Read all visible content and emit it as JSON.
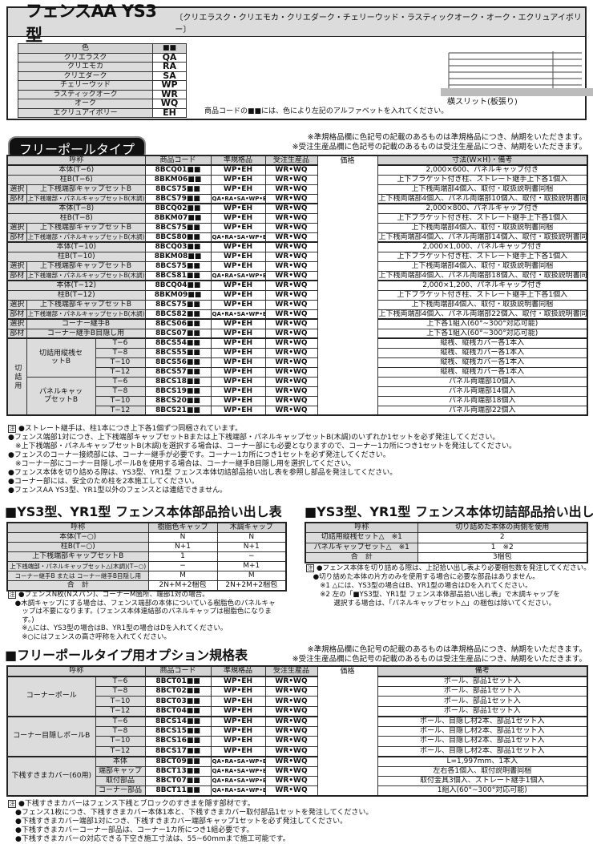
{
  "header": {
    "title": "フェンスAA YS3型",
    "colors_subtitle": "〔クリエラスク・クリエモカ・クリエダーク・チェリーウッド・ラスティックオーク・オーク・エクリュアイボリー〕"
  },
  "color_table": {
    "headers": [
      "色",
      "■■"
    ],
    "rows": [
      [
        "クリエラスク",
        "QA"
      ],
      [
        "クリエモカ",
        "RA"
      ],
      [
        "クリエダーク",
        "SA"
      ],
      [
        "チェリーウッド",
        "WP"
      ],
      [
        "ラスティックオーク",
        "WR"
      ],
      [
        "オーク",
        "WQ"
      ],
      [
        "エクリュアイボリー",
        "EH"
      ]
    ],
    "note": "商品コードの■■には、色により左記のアルファベットを入れてください。"
  },
  "figure": {
    "caption": "横スリット(板張り)"
  },
  "free_pole": {
    "badge": "フリーポールタイプ",
    "star_notes": [
      "※準規格品欄に色記号の記載のあるものは準規格品につき、納期をいただきます。",
      "※受注生産品欄に色記号の記載のあるものは受注生産品につき、納期をいただきます。"
    ],
    "headers": [
      "呼称",
      "商品コード",
      "準規格品",
      "受注生産品",
      "価格",
      "寸法(W×H)・備考"
    ],
    "rows": [
      {
        "name": "本体(T−6)",
        "code": "8BCQ01■■",
        "std": "WP•EH",
        "ord": "WR•WQ",
        "note": "2,000×600、パネルキャップ付き"
      },
      {
        "name": "柱B(T−6)",
        "code": "8BKM06■■",
        "std": "WP•EH",
        "ord": "WR•WQ",
        "note": "上下ブラケット付き柱、ストレート継手上下各1個入"
      },
      {
        "side": "選択",
        "name": "上下桟端部キャップセットB",
        "code": "8BCS75■■",
        "std": "WP•EH",
        "ord": "WR•WQ",
        "note": "上下桟両端部4個入、取付・取扱説明書同梱"
      },
      {
        "side": "部材",
        "name": "上下桟端部・パネルキャップセットB(木調)",
        "code": "8BCS79■■",
        "std": "QA•RA•SA•WP•EH",
        "ord": "WR•WQ",
        "note": "上下桟両端部4個入、パネル両端部10個入、取付・取扱説明書同梱"
      },
      {
        "name": "本体(T−8)",
        "code": "8BCQ02■■",
        "std": "WP•EH",
        "ord": "WR•WQ",
        "note": "2,000×800、パネルキャップ付き"
      },
      {
        "name": "柱B(T−8)",
        "code": "8BKM07■■",
        "std": "WP•EH",
        "ord": "WR•WQ",
        "note": "上下ブラケット付き柱、ストレート継手上下各1個入"
      },
      {
        "side": "選択",
        "name": "上下桟端部キャップセットB",
        "code": "8BCS75■■",
        "std": "WP•EH",
        "ord": "WR•WQ",
        "note": "上下桟両端部4個入、取付・取扱説明書同梱"
      },
      {
        "side": "部材",
        "name": "上下桟端部・パネルキャップセットB(木調)",
        "code": "8BCS80■■",
        "std": "QA•RA•SA•WP•EH",
        "ord": "WR•WQ",
        "note": "上下桟両端部4個入、パネル両端部14個入、取付・取扱説明書同梱"
      },
      {
        "name": "本体(T−10)",
        "code": "8BCQ03■■",
        "std": "WP•EH",
        "ord": "WR•WQ",
        "note": "2,000×1,000、パネルキャップ付き"
      },
      {
        "name": "柱B(T−10)",
        "code": "8BKM08■■",
        "std": "WP•EH",
        "ord": "WR•WQ",
        "note": "上下ブラケット付き柱、ストレート継手上下各1個入"
      },
      {
        "side": "選択",
        "name": "上下桟端部キャップセットB",
        "code": "8BCS75■■",
        "std": "WP•EH",
        "ord": "WR•WQ",
        "note": "上下桟両端部4個入、取付・取扱説明書同梱"
      },
      {
        "side": "部材",
        "name": "上下桟端部・パネルキャップセットB(木調)",
        "code": "8BCS81■■",
        "std": "QA•RA•SA•WP•EH",
        "ord": "WR•WQ",
        "note": "上下桟両端部4個入、パネル両端部18個入、取付・取扱説明書同梱"
      },
      {
        "name": "本体(T−12)",
        "code": "8BCQ04■■",
        "std": "WP•EH",
        "ord": "WR•WQ",
        "note": "2,000×1,200、パネルキャップ付き"
      },
      {
        "name": "柱B(T−12)",
        "code": "8BKM09■■",
        "std": "WP•EH",
        "ord": "WR•WQ",
        "note": "上下ブラケット付き柱、ストレート継手上下各1個入"
      },
      {
        "side": "選択",
        "name": "上下桟端部キャップセットB",
        "code": "8BCS75■■",
        "std": "WP•EH",
        "ord": "WR•WQ",
        "note": "上下桟両端部4個入、取付・取扱説明書同梱"
      },
      {
        "side": "部材",
        "name": "上下桟端部・パネルキャップセットB(木調)",
        "code": "8BCS82■■",
        "std": "QA•RA•SA•WP•EH",
        "ord": "WR•WQ",
        "note": "上下桟両端部4個入、パネル両端部22個入、取付・取扱説明書同梱"
      },
      {
        "side": "選択",
        "name": "コーナー継手B",
        "code": "8BCS06■■",
        "std": "WP•EH",
        "ord": "WR•WQ",
        "note": "上下各1組入(60°~300°対応可能)"
      },
      {
        "side": "部材",
        "name": "コーナー継手B目隠し用",
        "code": "8BCS07■■",
        "std": "WP•EH",
        "ord": "WR•WQ",
        "note": "上下各1組入(60°~300°対応可能)"
      },
      {
        "group": "切詰用",
        "sub": "切詰用縦桟セットB",
        "name": "T−6",
        "code": "8BCS54■■",
        "std": "WP•EH",
        "ord": "WR•WQ",
        "note": "縦桟、縦桟カバー各1本入"
      },
      {
        "group": "切詰用",
        "sub": "切詰用縦桟セットB",
        "name": "T−8",
        "code": "8BCS55■■",
        "std": "WP•EH",
        "ord": "WR•WQ",
        "note": "縦桟、縦桟カバー各1本入"
      },
      {
        "group": "切詰用",
        "sub": "切詰用縦桟セットB",
        "name": "T−10",
        "code": "8BCS56■■",
        "std": "WP•EH",
        "ord": "WR•WQ",
        "note": "縦桟、縦桟カバー各1本入"
      },
      {
        "group": "切詰用",
        "sub": "切詰用縦桟セットB",
        "name": "T−12",
        "code": "8BCS57■■",
        "std": "WP•EH",
        "ord": "WR•WQ",
        "note": "縦桟、縦桟カバー各1本入"
      },
      {
        "group": "切詰用",
        "sub": "パネルキャップセットB",
        "name": "T−6",
        "code": "8BCS18■■",
        "std": "WP•EH",
        "ord": "WR•WQ",
        "note": "パネル両端部10個入"
      },
      {
        "group": "切詰用",
        "sub": "パネルキャップセットB",
        "name": "T−8",
        "code": "8BCS19■■",
        "std": "WP•EH",
        "ord": "WR•WQ",
        "note": "パネル両端部14個入"
      },
      {
        "group": "切詰用",
        "sub": "パネルキャップセットB",
        "name": "T−10",
        "code": "8BCS20■■",
        "std": "WP•EH",
        "ord": "WR•WQ",
        "note": "パネル両端部18個入"
      },
      {
        "group": "切詰用",
        "sub": "パネルキャップセットB",
        "name": "T−12",
        "code": "8BCS21■■",
        "std": "WP•EH",
        "ord": "WR•WQ",
        "note": "パネル両端部22個入"
      }
    ],
    "notes_mark": "注",
    "notes": [
      "●ストレート継手は、柱1本につき上下各1個ずつ同梱されています。",
      "●フェンス端部1対につき、上下桟端部キャップセットBまたは上下桟端部・パネルキャップセットB(木調)のいずれか1セットを必ず発注してください。",
      "　※上下桟端部・パネルキャップセットB(木調)を選択する場合は、コーナー部にも必要となりますので、コーナー1カ所につき1セットを発注してください。",
      "●フェンスのコーナー接続部には、コーナー継手が必要です。コーナー1カ所につき1セットを必ず発注してください。",
      "　※コーナー部にコーナー目隠しポールBを使用する場合は、コーナー継手B目隠し用を選択してください。",
      "●フェンス本体を切り詰める際は、YS3型、YR1型 フェンス本体切詰部品拾い出し表を参照し部品を発注してください。",
      "●コーナー部には、安全のため柱を2本施工してください。",
      "●フェンスAA YS3型、YR1型以外のフェンスとは連結できません。"
    ]
  },
  "parts_table": {
    "title": "■YS3型、YR1型 フェンス本体部品拾い出し表",
    "headers": [
      "呼称",
      "樹脂色キャップ",
      "木調キャップ"
    ],
    "rows": [
      [
        "本体(T−○)",
        "N",
        "N"
      ],
      [
        "柱B(T−○)",
        "N+1",
        "N+1"
      ],
      [
        "上下桟端部キャップセットB",
        "1",
        "−"
      ],
      [
        "上下桟端部・パネルキャップセット△(木調)(T−○)",
        "−",
        "M+1"
      ],
      [
        "コーナー継手B または コーナー継手B目隠し用",
        "M",
        "M"
      ],
      [
        "合　計",
        "2N+M+2梱包",
        "2N+2M+2梱包"
      ]
    ],
    "notes_mark": "注",
    "notes": [
      "●フェンスN枚(Nスパン)、コーナーM箇所、端部1対の場合。",
      "　●木調キャップにする場合は、フェンス端部の本体についている樹脂色のパネルキャ",
      "　　ップは不要になります。(フェンス本体連結部のパネルキャップは樹脂色になりま",
      "　　す。)",
      "　　※△には、YS3型の場合はB、YR1型の場合はDを入れてください。",
      "　　※○にはフェンスの高さ呼称を入れてください。"
    ]
  },
  "cut_table": {
    "title": "■YS3型、YR1型 フェンス本体切詰部品拾い出し表",
    "headers": [
      "呼称",
      "切り詰めた本体の両側を使用"
    ],
    "rows": [
      [
        "切詰用縦桟セット△　※1",
        "2"
      ],
      [
        "パネルキャップセット△　※1",
        "1　※2"
      ],
      [
        "合　計",
        "3梱包"
      ]
    ],
    "notes_mark": "注",
    "notes": [
      "●フェンス本体を切り詰める際は、上記拾い出し表より必要梱包数を発注してください。",
      "　●切り詰めた本体の片方のみを使用する場合に必要な部品はありません。",
      "　　※1 △には、YS3型の場合はB、YR1型の場合はDを入れてください。",
      "　　※2 左の「■YS3型、YR1型 フェンス本体部品拾い出し表」で木調キャップを",
      "　　　　選択する場合は、「パネルキャップセット△」の梱包は除いてください。"
    ]
  },
  "option_table": {
    "title": "■フリーポールタイプ用オプション規格表",
    "star_notes": [
      "※準規格品欄に色記号の記載のあるものは準規格品につき、納期をいただきます。",
      "※受注生産品欄に色記号の記載のあるものは受注生産品につき、納期をいただきます。"
    ],
    "headers": [
      "呼称",
      "商品コード",
      "準規格品",
      "受注生産品",
      "価格",
      "備考"
    ],
    "rows": [
      {
        "group": "コーナーポール",
        "name": "T−6",
        "code": "8BCT01■■",
        "std": "WP•EH",
        "ord": "WR•WQ",
        "note": "ポール、部品1セット入"
      },
      {
        "group": "コーナーポール",
        "name": "T−8",
        "code": "8BCT02■■",
        "std": "WP•EH",
        "ord": "WR•WQ",
        "note": "ポール、部品1セット入"
      },
      {
        "group": "コーナーポール",
        "name": "T−10",
        "code": "8BCT03■■",
        "std": "WP•EH",
        "ord": "WR•WQ",
        "note": "ポール、部品1セット入"
      },
      {
        "group": "コーナーポール",
        "name": "T−12",
        "code": "8BCT04■■",
        "std": "WP•EH",
        "ord": "WR•WQ",
        "note": "ポール、部品1セット入"
      },
      {
        "group": "コーナー目隠しポールB",
        "name": "T−6",
        "code": "8BCS14■■",
        "std": "WP•EH",
        "ord": "WR•WQ",
        "note": "ポール、目隠し材2本、部品1セット入"
      },
      {
        "group": "コーナー目隠しポールB",
        "name": "T−8",
        "code": "8BCS15■■",
        "std": "WP•EH",
        "ord": "WR•WQ",
        "note": "ポール、目隠し材2本、部品1セット入"
      },
      {
        "group": "コーナー目隠しポールB",
        "name": "T−10",
        "code": "8BCS16■■",
        "std": "WP•EH",
        "ord": "WR•WQ",
        "note": "ポール、目隠し材2本、部品1セット入"
      },
      {
        "group": "コーナー目隠しポールB",
        "name": "T−12",
        "code": "8BCS17■■",
        "std": "WP•EH",
        "ord": "WR•WQ",
        "note": "ポール、目隠し材2本、部品1セット入"
      },
      {
        "group": "下桟すきまカバー(60用)",
        "name": "本体",
        "code": "8BCT09■■",
        "std": "QA•RA•SA•WP•EH",
        "ord": "WR•WQ",
        "note": "L=1,997mm、1本入"
      },
      {
        "group": "下桟すきまカバー(60用)",
        "name": "端部キャップ",
        "code": "8BCT13■■",
        "std": "QA•RA•SA•WP•EH",
        "ord": "WR•WQ",
        "note": "左右各1個入、取付説明書同梱"
      },
      {
        "group": "下桟すきまカバー(60用)",
        "name": "取付部品",
        "code": "8BCT07■■",
        "std": "QA•RA•SA•WP•EH",
        "ord": "WR•WQ",
        "note": "取付金具3個入、ストレート継手1個入"
      },
      {
        "group": "下桟すきまカバー(60用)",
        "name": "コーナー部品",
        "code": "8BCT11■■",
        "std": "QA•RA•SA•WP•EH",
        "ord": "WR•WQ",
        "note": "1組入(60°~300°対応可能)"
      }
    ],
    "notes_mark": "注",
    "notes": [
      "●下桟すきまカバーはフェンス下桟とブロックのすきまを隠す部材です。",
      "　●フェンス1枚につき、下桟すきまカバー本体1本と、下桟すきまカバー取付部品1セットを発注してください。",
      "　●下桟すきまカバー端部1対につき、下桟すきまカバー端部キャップ1セットを必ず発注してください。",
      "　●下桟すきまカバーコーナー部品は、コーナー1カ所につき1組必要です。",
      "　●下桟すきまカバーの対応できる下空き施工寸法は、55~60mmまで施工可能です。"
    ]
  }
}
